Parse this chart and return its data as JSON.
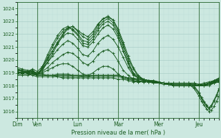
{
  "background_color": "#cce8e0",
  "grid_major_color": "#aacfc8",
  "grid_minor_color": "#bbddd8",
  "line_color": "#1a5c20",
  "xlabel": "Pression niveau de la mer( hPa )",
  "ylim": [
    1015.5,
    1024.5
  ],
  "yticks": [
    1016,
    1017,
    1018,
    1019,
    1020,
    1021,
    1022,
    1023,
    1024
  ],
  "day_labels": [
    "Dim",
    "Ven",
    "Lun",
    "Mar",
    "Mer",
    "Jeu"
  ],
  "day_positions": [
    0,
    24,
    72,
    120,
    168,
    216
  ],
  "total_hours": 240,
  "series": [
    {
      "pts_x": [
        0,
        6,
        12,
        18,
        24,
        30,
        36,
        42,
        48,
        54,
        60,
        66,
        72,
        78,
        84,
        90,
        96,
        102,
        108,
        114,
        120,
        126,
        132,
        138,
        144,
        150,
        156,
        162,
        168,
        174,
        180,
        186,
        192,
        198,
        204,
        210,
        216,
        222,
        228,
        234,
        240
      ],
      "pts_y": [
        1019.0,
        1019.0,
        1019.1,
        1019.2,
        1018.9,
        1019.2,
        1019.8,
        1020.5,
        1021.2,
        1021.9,
        1022.4,
        1022.6,
        1022.3,
        1022.0,
        1021.8,
        1022.2,
        1022.8,
        1023.2,
        1023.4,
        1023.1,
        1022.4,
        1021.4,
        1020.3,
        1019.4,
        1018.8,
        1018.5,
        1018.4,
        1018.4,
        1018.3,
        1018.2,
        1018.1,
        1018.0,
        1018.0,
        1018.0,
        1018.0,
        1018.0,
        1018.0,
        1018.0,
        1018.0,
        1018.2,
        1018.4
      ]
    },
    {
      "pts_x": [
        0,
        6,
        12,
        18,
        24,
        30,
        36,
        42,
        48,
        54,
        60,
        66,
        72,
        78,
        84,
        90,
        96,
        102,
        108,
        114,
        120,
        126,
        132,
        138,
        144,
        150,
        156,
        162,
        168,
        174,
        180,
        186,
        192,
        198,
        204,
        210,
        216,
        222,
        228,
        234,
        240
      ],
      "pts_y": [
        1019.1,
        1019.0,
        1019.1,
        1019.2,
        1018.9,
        1019.3,
        1020.0,
        1020.7,
        1021.4,
        1022.0,
        1022.5,
        1022.6,
        1022.2,
        1021.8,
        1021.6,
        1022.0,
        1022.7,
        1023.2,
        1023.3,
        1023.1,
        1022.3,
        1021.2,
        1020.1,
        1019.3,
        1018.7,
        1018.5,
        1018.4,
        1018.4,
        1018.3,
        1018.2,
        1018.1,
        1018.0,
        1018.0,
        1018.0,
        1018.0,
        1018.0,
        1018.0,
        1018.0,
        1018.1,
        1018.3,
        1018.5
      ]
    },
    {
      "pts_x": [
        0,
        6,
        12,
        18,
        24,
        30,
        36,
        42,
        48,
        54,
        60,
        66,
        72,
        78,
        84,
        90,
        96,
        102,
        108,
        114,
        120,
        126,
        132,
        138,
        144,
        150,
        156,
        162,
        168,
        174,
        180,
        186,
        192,
        198,
        204,
        210,
        216,
        222,
        228,
        234,
        240
      ],
      "pts_y": [
        1019.2,
        1019.1,
        1019.1,
        1019.1,
        1018.8,
        1019.4,
        1020.2,
        1021.0,
        1021.7,
        1022.2,
        1022.5,
        1022.4,
        1022.0,
        1021.5,
        1021.4,
        1021.8,
        1022.5,
        1023.0,
        1023.2,
        1022.9,
        1022.1,
        1021.0,
        1019.9,
        1019.0,
        1018.7,
        1018.5,
        1018.4,
        1018.3,
        1018.3,
        1018.2,
        1018.1,
        1018.0,
        1018.0,
        1018.0,
        1018.0,
        1018.0,
        1018.0,
        1018.0,
        1018.1,
        1018.3,
        1018.5
      ]
    },
    {
      "pts_x": [
        0,
        6,
        12,
        18,
        24,
        30,
        36,
        42,
        48,
        54,
        60,
        66,
        72,
        78,
        84,
        90,
        96,
        102,
        108,
        114,
        120,
        126,
        132,
        138,
        144,
        150,
        156,
        162,
        168,
        174,
        180,
        186,
        192,
        198,
        204,
        210,
        216,
        222,
        228,
        234,
        240
      ],
      "pts_y": [
        1019.3,
        1019.1,
        1019.0,
        1019.0,
        1018.8,
        1019.5,
        1020.4,
        1021.2,
        1021.9,
        1022.4,
        1022.6,
        1022.3,
        1021.9,
        1021.3,
        1021.2,
        1021.6,
        1022.3,
        1022.8,
        1023.0,
        1022.7,
        1021.9,
        1020.7,
        1019.7,
        1018.9,
        1018.6,
        1018.5,
        1018.4,
        1018.3,
        1018.3,
        1018.2,
        1018.1,
        1018.0,
        1018.0,
        1018.0,
        1018.0,
        1018.0,
        1018.0,
        1018.1,
        1018.2,
        1018.4,
        1018.6
      ]
    },
    {
      "pts_x": [
        0,
        6,
        12,
        18,
        24,
        30,
        36,
        42,
        48,
        54,
        60,
        66,
        72,
        78,
        84,
        90,
        96,
        102,
        108,
        114,
        120,
        126,
        132,
        138,
        144,
        150,
        156,
        162,
        168,
        174,
        180,
        186,
        192,
        198,
        204,
        210,
        216,
        222,
        228,
        234,
        240
      ],
      "pts_y": [
        1018.9,
        1018.9,
        1018.9,
        1018.9,
        1018.8,
        1018.8,
        1018.8,
        1018.8,
        1018.8,
        1018.8,
        1018.8,
        1018.8,
        1018.8,
        1018.8,
        1018.8,
        1018.8,
        1018.8,
        1018.8,
        1018.8,
        1018.8,
        1018.8,
        1018.7,
        1018.6,
        1018.6,
        1018.5,
        1018.4,
        1018.4,
        1018.3,
        1018.2,
        1018.2,
        1018.2,
        1018.2,
        1018.2,
        1018.2,
        1018.2,
        1018.2,
        1018.1,
        1018.2,
        1018.3,
        1018.4,
        1018.5
      ]
    },
    {
      "pts_x": [
        0,
        6,
        12,
        18,
        24,
        30,
        36,
        42,
        48,
        54,
        60,
        66,
        72,
        78,
        84,
        90,
        96,
        102,
        108,
        114,
        120,
        126,
        132,
        138,
        144,
        150,
        156,
        162,
        168,
        174,
        180,
        186,
        192,
        198,
        204,
        210,
        216,
        222,
        228,
        234,
        240
      ],
      "pts_y": [
        1018.9,
        1018.9,
        1018.9,
        1018.8,
        1018.7,
        1018.7,
        1018.7,
        1018.7,
        1018.7,
        1018.7,
        1018.7,
        1018.7,
        1018.7,
        1018.7,
        1018.7,
        1018.7,
        1018.7,
        1018.7,
        1018.7,
        1018.7,
        1018.7,
        1018.6,
        1018.5,
        1018.4,
        1018.3,
        1018.3,
        1018.3,
        1018.3,
        1018.2,
        1018.2,
        1018.2,
        1018.2,
        1018.2,
        1018.2,
        1018.2,
        1018.2,
        1018.1,
        1018.1,
        1018.2,
        1018.3,
        1018.4
      ]
    },
    {
      "pts_x": [
        0,
        6,
        12,
        18,
        24,
        30,
        36,
        42,
        48,
        54,
        60,
        66,
        72,
        78,
        84,
        90,
        96,
        102,
        108,
        114,
        120,
        126,
        132,
        138,
        144,
        150,
        156,
        162,
        168,
        174,
        180,
        186,
        192,
        198,
        204,
        210,
        216,
        222,
        228,
        234,
        240
      ],
      "pts_y": [
        1019.1,
        1019.0,
        1019.0,
        1018.9,
        1018.8,
        1018.8,
        1018.8,
        1018.8,
        1018.8,
        1018.8,
        1018.8,
        1018.8,
        1018.8,
        1018.8,
        1018.8,
        1018.8,
        1018.8,
        1018.8,
        1018.8,
        1018.8,
        1018.8,
        1018.7,
        1018.6,
        1018.5,
        1018.4,
        1018.3,
        1018.3,
        1018.3,
        1018.2,
        1018.2,
        1018.2,
        1018.2,
        1018.2,
        1018.2,
        1018.2,
        1018.2,
        1018.1,
        1018.1,
        1018.2,
        1018.3,
        1018.4
      ]
    },
    {
      "pts_x": [
        0,
        6,
        12,
        18,
        24,
        30,
        36,
        42,
        48,
        54,
        60,
        66,
        72,
        78,
        84,
        90,
        96,
        102,
        108,
        114,
        120,
        126,
        132,
        138,
        144,
        150,
        156,
        162,
        168,
        174,
        180,
        186,
        192,
        198,
        204,
        210,
        216,
        222,
        228,
        234,
        240
      ],
      "pts_y": [
        1019.3,
        1019.2,
        1019.1,
        1019.0,
        1018.9,
        1019.1,
        1019.4,
        1019.8,
        1020.1,
        1020.4,
        1020.6,
        1020.5,
        1020.2,
        1019.8,
        1019.6,
        1019.9,
        1020.4,
        1020.7,
        1020.8,
        1020.5,
        1019.9,
        1019.2,
        1018.8,
        1018.5,
        1018.4,
        1018.3,
        1018.3,
        1018.2,
        1018.2,
        1018.1,
        1018.1,
        1018.1,
        1018.1,
        1018.1,
        1018.1,
        1018.1,
        1018.0,
        1018.1,
        1018.2,
        1018.3,
        1018.4
      ]
    },
    {
      "pts_x": [
        0,
        6,
        12,
        18,
        24,
        30,
        36,
        42,
        48,
        54,
        60,
        66,
        72,
        78,
        84,
        90,
        96,
        102,
        108,
        114,
        120,
        126,
        132,
        138,
        144,
        150,
        156,
        162,
        168,
        174,
        180,
        186,
        192,
        198,
        204,
        210,
        216,
        222,
        228,
        234,
        240
      ],
      "pts_y": [
        1019.4,
        1019.3,
        1019.2,
        1019.1,
        1019.0,
        1019.3,
        1019.8,
        1020.3,
        1020.8,
        1021.2,
        1021.5,
        1021.3,
        1020.9,
        1020.4,
        1020.3,
        1020.7,
        1021.3,
        1021.7,
        1021.9,
        1021.6,
        1021.0,
        1020.2,
        1019.4,
        1018.8,
        1018.6,
        1018.4,
        1018.3,
        1018.3,
        1018.2,
        1018.2,
        1018.1,
        1018.1,
        1018.1,
        1018.1,
        1018.1,
        1018.1,
        1018.0,
        1018.1,
        1018.2,
        1018.3,
        1018.5
      ]
    },
    {
      "pts_x": [
        0,
        6,
        12,
        18,
        24,
        30,
        36,
        42,
        48,
        54,
        60,
        66,
        72,
        78,
        84,
        90,
        96,
        102,
        108,
        114,
        120,
        126,
        132,
        138,
        144,
        150,
        156,
        162,
        168,
        174,
        180,
        186,
        192,
        198,
        204,
        210,
        216,
        222,
        228,
        234,
        240
      ],
      "pts_y": [
        1019.0,
        1019.0,
        1019.1,
        1019.3,
        1019.1,
        1019.5,
        1020.1,
        1020.7,
        1021.3,
        1021.8,
        1022.1,
        1022.0,
        1021.6,
        1021.1,
        1021.0,
        1021.4,
        1022.0,
        1022.5,
        1022.7,
        1022.4,
        1021.7,
        1020.7,
        1019.7,
        1018.9,
        1018.6,
        1018.5,
        1018.4,
        1018.3,
        1018.3,
        1018.2,
        1018.1,
        1018.1,
        1018.1,
        1018.1,
        1018.1,
        1018.1,
        1018.0,
        1018.1,
        1018.2,
        1018.4,
        1018.6
      ]
    },
    {
      "pts_x": [
        0,
        6,
        12,
        18,
        24,
        30,
        36,
        42,
        48,
        54,
        60,
        66,
        72,
        78,
        84,
        90,
        96,
        102,
        108,
        114,
        120,
        126,
        132,
        138,
        144,
        150,
        156,
        162,
        168,
        174,
        180,
        186,
        192,
        198,
        204,
        210,
        216,
        222,
        228,
        234,
        240
      ],
      "pts_y": [
        1018.8,
        1018.8,
        1018.8,
        1018.9,
        1018.8,
        1018.8,
        1018.8,
        1018.8,
        1018.9,
        1018.9,
        1018.9,
        1018.8,
        1018.8,
        1018.7,
        1018.7,
        1018.8,
        1018.8,
        1018.8,
        1018.8,
        1018.8,
        1018.8,
        1018.7,
        1018.6,
        1018.5,
        1018.5,
        1018.4,
        1018.4,
        1018.3,
        1018.2,
        1018.2,
        1018.2,
        1018.1,
        1018.1,
        1018.1,
        1018.1,
        1018.1,
        1018.0,
        1018.1,
        1018.1,
        1018.2,
        1018.3
      ]
    },
    {
      "pts_x": [
        0,
        6,
        12,
        18,
        24,
        30,
        36,
        42,
        48,
        54,
        60,
        66,
        72,
        78,
        84,
        90,
        96,
        102,
        108,
        114,
        120,
        126,
        132,
        138,
        144,
        150,
        156,
        162,
        168,
        174,
        180,
        186,
        192,
        198,
        204,
        210,
        216,
        222,
        228,
        234,
        240
      ],
      "pts_y": [
        1019.2,
        1019.2,
        1019.1,
        1019.1,
        1018.9,
        1019.0,
        1019.2,
        1019.4,
        1019.6,
        1019.7,
        1019.7,
        1019.5,
        1019.2,
        1018.9,
        1018.8,
        1019.0,
        1019.3,
        1019.5,
        1019.5,
        1019.3,
        1018.9,
        1018.6,
        1018.5,
        1018.4,
        1018.3,
        1018.3,
        1018.3,
        1018.3,
        1018.2,
        1018.2,
        1018.1,
        1018.1,
        1018.1,
        1018.1,
        1018.1,
        1018.1,
        1018.0,
        1018.0,
        1018.1,
        1018.2,
        1018.3
      ]
    },
    {
      "pts_x": [
        0,
        6,
        12,
        18,
        24,
        30,
        36,
        42,
        48,
        54,
        60,
        66,
        72,
        78,
        84,
        90,
        96,
        102,
        108,
        114,
        120,
        126,
        132,
        138,
        144,
        150,
        156,
        162,
        168,
        174,
        180,
        186,
        192,
        198,
        204,
        210,
        216,
        222,
        228,
        234,
        240
      ],
      "pts_y": [
        1019.1,
        1019.0,
        1019.0,
        1019.0,
        1018.9,
        1018.9,
        1018.8,
        1018.8,
        1018.7,
        1018.6,
        1018.6,
        1018.6,
        1018.6,
        1018.6,
        1018.6,
        1018.6,
        1018.6,
        1018.6,
        1018.6,
        1018.6,
        1018.5,
        1018.5,
        1018.4,
        1018.3,
        1018.3,
        1018.3,
        1018.3,
        1018.2,
        1018.2,
        1018.2,
        1018.1,
        1018.1,
        1018.1,
        1018.1,
        1018.1,
        1018.1,
        1018.0,
        1018.0,
        1018.1,
        1018.2,
        1018.3
      ]
    }
  ],
  "drop_series": {
    "pts_x": [
      204,
      210,
      216,
      219,
      222,
      225,
      228,
      231,
      234,
      237,
      240
    ],
    "pts_y": [
      1018.1,
      1017.8,
      1017.2,
      1016.8,
      1016.5,
      1016.2,
      1016.0,
      1016.1,
      1016.4,
      1016.8,
      1017.2
    ]
  },
  "drop_series2": {
    "pts_x": [
      204,
      210,
      216,
      219,
      222,
      225,
      228,
      231,
      234,
      237,
      240
    ],
    "pts_y": [
      1018.2,
      1018.0,
      1017.5,
      1017.1,
      1016.8,
      1016.5,
      1016.3,
      1016.5,
      1016.9,
      1017.3,
      1017.8
    ]
  },
  "drop_series3": {
    "pts_x": [
      204,
      210,
      216,
      219,
      222,
      225,
      228,
      231,
      234,
      237,
      240
    ],
    "pts_y": [
      1018.1,
      1017.9,
      1017.4,
      1017.0,
      1016.7,
      1016.4,
      1016.2,
      1016.4,
      1016.8,
      1017.2,
      1017.7
    ]
  }
}
